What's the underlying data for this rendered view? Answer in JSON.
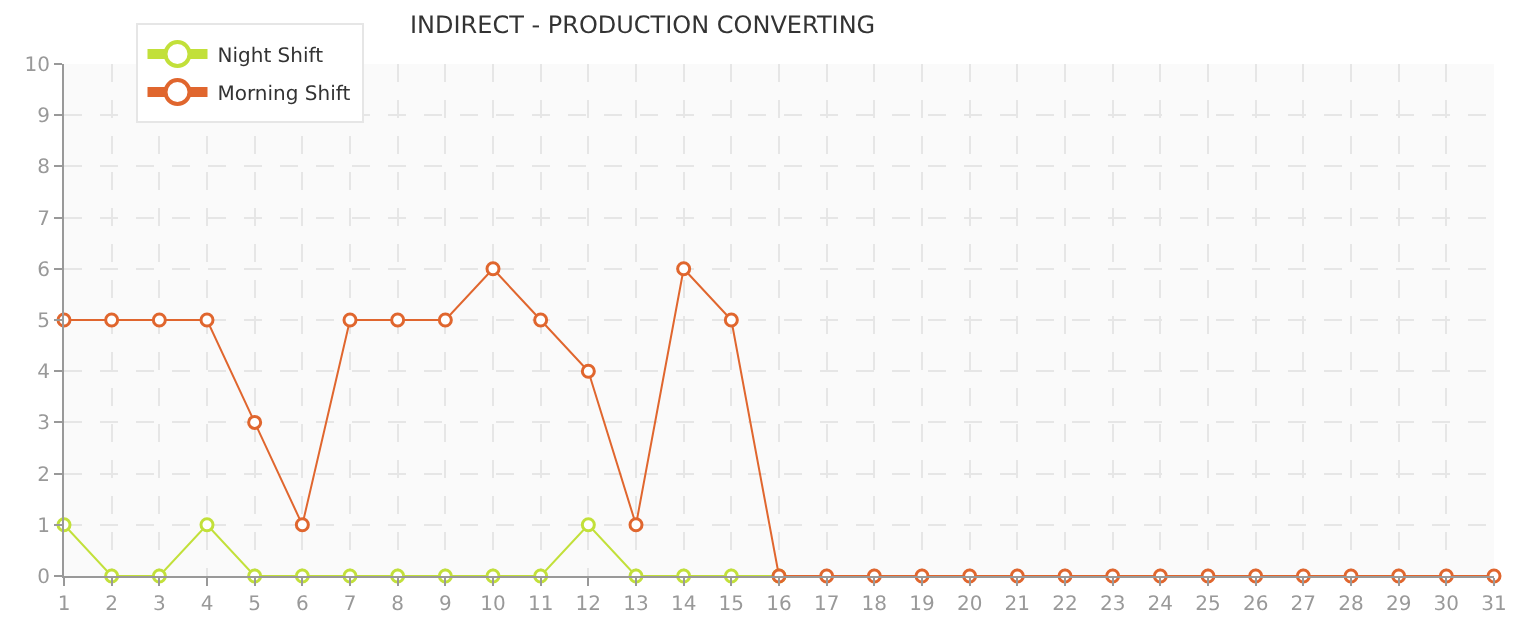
{
  "chart_data": {
    "type": "line",
    "title": "INDIRECT - PRODUCTION CONVERTING",
    "x": [
      1,
      2,
      3,
      4,
      5,
      6,
      7,
      8,
      9,
      10,
      11,
      12,
      13,
      14,
      15,
      16,
      17,
      18,
      19,
      20,
      21,
      22,
      23,
      24,
      25,
      26,
      27,
      28,
      29,
      30,
      31
    ],
    "series": [
      {
        "name": "Night Shift",
        "color": "#c2e03a",
        "values": [
          1,
          0,
          0,
          1,
          0,
          0,
          0,
          0,
          0,
          0,
          0,
          1,
          0,
          0,
          0,
          0,
          null,
          null,
          null,
          null,
          null,
          null,
          null,
          null,
          null,
          null,
          null,
          null,
          null,
          null,
          null
        ]
      },
      {
        "name": "Morning Shift",
        "color": "#e0662e",
        "values": [
          5,
          5,
          5,
          5,
          3,
          1,
          5,
          5,
          5,
          6,
          5,
          4,
          1,
          6,
          5,
          0,
          0,
          0,
          0,
          0,
          0,
          0,
          0,
          0,
          0,
          0,
          0,
          0,
          0,
          0,
          0
        ]
      }
    ],
    "xlim": [
      1,
      31
    ],
    "xticks": [
      1,
      2,
      3,
      4,
      5,
      6,
      7,
      8,
      9,
      10,
      11,
      12,
      13,
      14,
      15,
      16,
      17,
      18,
      19,
      20,
      21,
      22,
      23,
      24,
      25,
      26,
      27,
      28,
      29,
      30,
      31
    ],
    "ylim": [
      0,
      10
    ],
    "yticks": [
      0,
      1,
      2,
      3,
      4,
      5,
      6,
      7,
      8,
      9,
      10
    ],
    "grid": true,
    "legend": "top left",
    "marker": "circle",
    "line_style": "solid"
  }
}
